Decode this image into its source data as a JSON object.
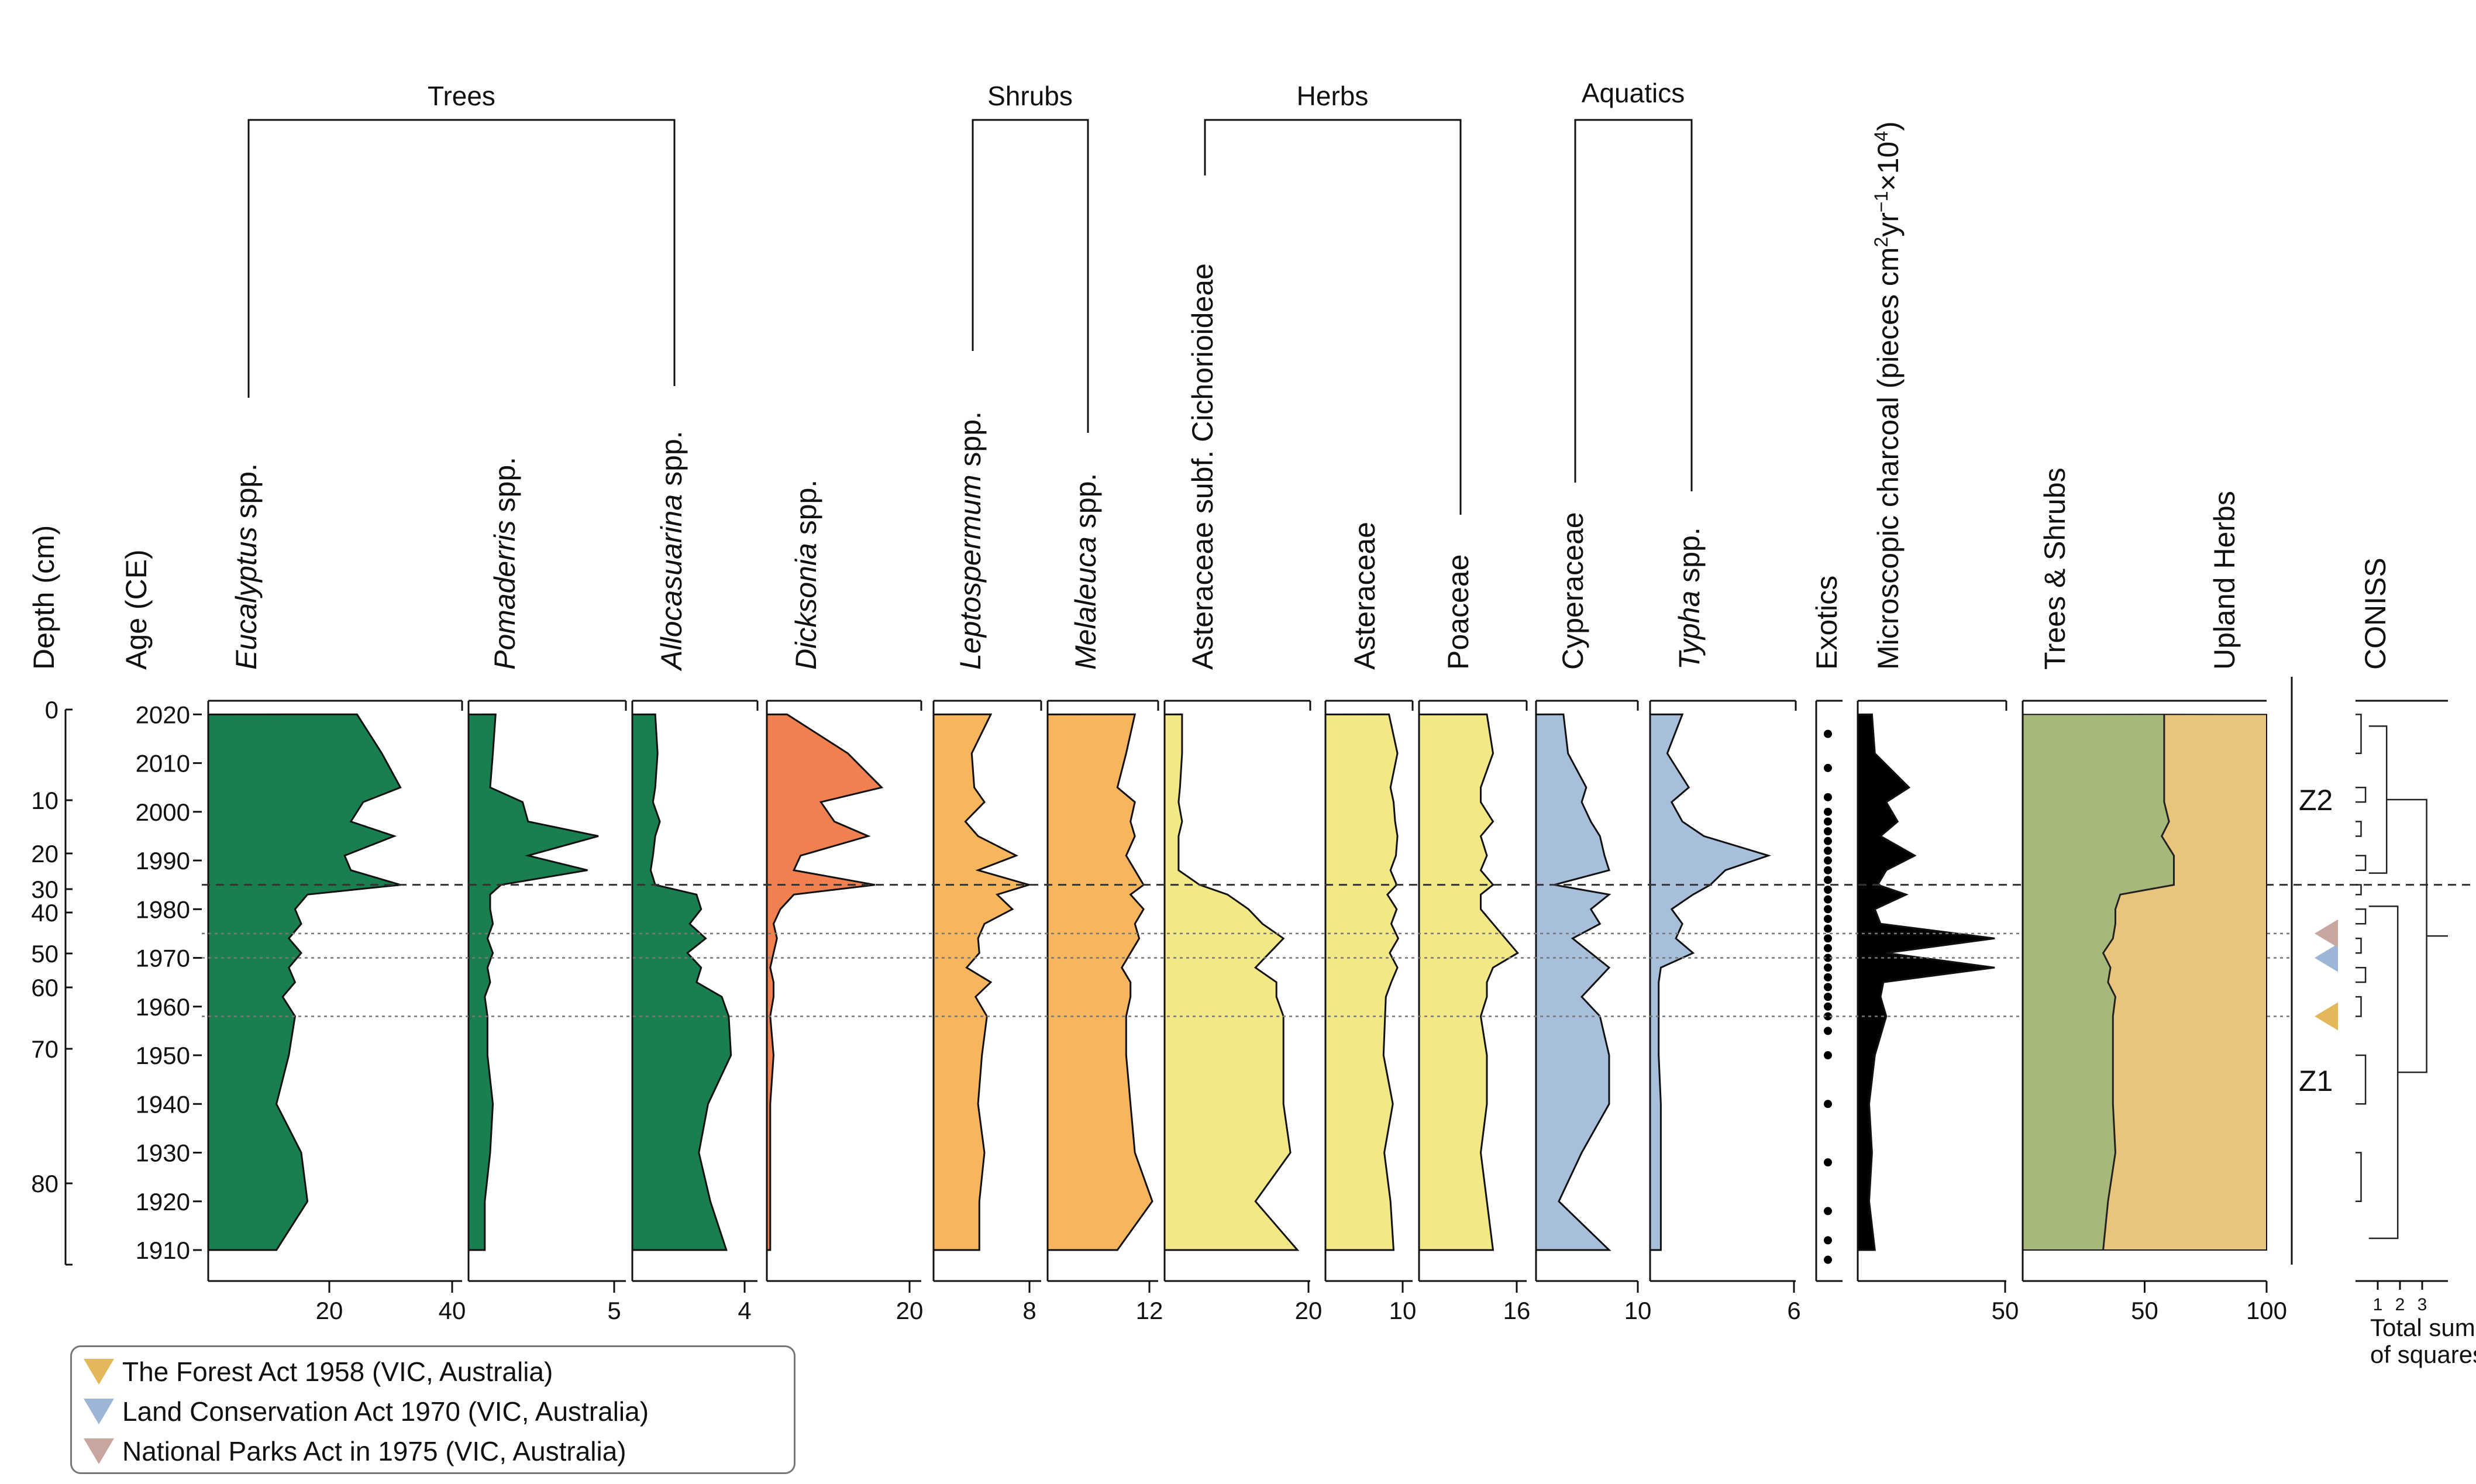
{
  "legend": {
    "items": [
      {
        "label": "The Forest Act 1958 (VIC, Australia)",
        "color": "#e3b85a",
        "age": 1958
      },
      {
        "label": "Land Conservation Act 1970  (VIC, Australia)",
        "color": "#9db5d6",
        "age": 1970
      },
      {
        "label": "National Parks Act in 1975 (VIC, Australia)",
        "color": "#c9a59f",
        "age": 1975
      }
    ]
  },
  "chart_data": {
    "type": "area",
    "y_axis": {
      "depth_label": "Depth (cm)",
      "age_label": "Age (CE)",
      "depth_ticks": [
        "0",
        "10",
        "20",
        "30",
        "40",
        "50",
        "60",
        "70",
        "80"
      ],
      "age_ticks": [
        "2020",
        "2010",
        "2000",
        "1990",
        "1980",
        "1970",
        "1960",
        "1950",
        "1940",
        "1930",
        "1920",
        "1910"
      ],
      "age_range": [
        2021,
        1907
      ]
    },
    "groups": [
      "Trees",
      "Shrubs",
      "Herbs",
      "Aquatics"
    ],
    "taxon_labels": {
      "eucalyptus": "Eucalyptus",
      "pomaderris": "Pomaderris",
      "allocasuarina": "Allocasuarina",
      "dicksonia": "Dicksonia",
      "leptospermum": "Leptospermum",
      "melaleuca": "Melaleuca",
      "typha": "Typha",
      "spp": "spp.",
      "cichorioideae": "Asteraceae subf. Cichorioideae",
      "asteraceae": "Asteraceae",
      "poaceae": "Poaceae",
      "cyperaceae": "Cyperaceae",
      "exotics": "Exotics",
      "charcoal_a": "Microscopic charcoal (pieces cm",
      "charcoal_sup2": "2",
      "charcoal_b": "yr",
      "charcoal_sup3": "−1",
      "charcoal_c": "×10",
      "charcoal_sup4": "4",
      "charcoal_d": ")",
      "trees_shrubs": "Trees & Shrubs",
      "upland_herbs": "Upland Herbs",
      "coniss": "CONISS"
    },
    "axis_ticks": {
      "eucalyptus": [
        "20",
        "40"
      ],
      "pomaderris": [
        "5"
      ],
      "allocasuarina": [
        "4"
      ],
      "dicksonia": [
        "20"
      ],
      "leptospermum": [
        "8"
      ],
      "melaleuca": [
        "12"
      ],
      "cichorioideae": [
        "20"
      ],
      "asteraceae": [
        "10"
      ],
      "poaceae": [
        "16"
      ],
      "cyperaceae": [
        "10"
      ],
      "typha": [
        "6"
      ],
      "charcoal": [
        "50"
      ],
      "summary": [
        "50",
        "100"
      ],
      "coniss": [
        "1",
        "2",
        "3"
      ]
    },
    "coniss_axis_label_1": "Total sum",
    "coniss_axis_label_2": "of squares",
    "zones": [
      "Z2",
      "Z1"
    ],
    "zone_boundary_age": 1985,
    "ages": [
      2020,
      2012,
      2005,
      2002,
      1998,
      1995,
      1991,
      1988,
      1985,
      1983,
      1980,
      1977,
      1974,
      1971,
      1968,
      1965,
      1962,
      1958,
      1950,
      1940,
      1930,
      1920,
      1910
    ],
    "series": [
      {
        "key": "eucalyptus",
        "max": 40,
        "color": "#1a7f4f",
        "values": [
          24,
          28,
          31,
          25,
          23,
          30,
          22,
          23,
          31,
          16,
          14,
          15,
          13,
          15,
          13,
          14,
          12,
          14,
          13,
          11,
          15,
          16,
          11
        ]
      },
      {
        "key": "pomaderris",
        "max": 5.6,
        "color": "#1a7f4f",
        "values": [
          1.0,
          0.9,
          0.8,
          2.0,
          2.2,
          4.8,
          2.2,
          4.4,
          1.2,
          0.8,
          0.8,
          0.9,
          0.7,
          0.9,
          0.7,
          0.8,
          0.6,
          0.7,
          0.7,
          0.9,
          0.8,
          0.6,
          0.6
        ]
      },
      {
        "key": "allocasuarina",
        "max": 5.2,
        "color": "#1a7f4f",
        "values": [
          1.0,
          1.1,
          1.0,
          0.9,
          1.2,
          1.0,
          0.9,
          0.8,
          1.0,
          2.8,
          3.0,
          2.5,
          3.2,
          2.4,
          3.0,
          2.8,
          3.9,
          4.2,
          4.3,
          3.3,
          2.9,
          3.4,
          4.1
        ]
      },
      {
        "key": "dicksonia",
        "max": 22,
        "color": "#f08050",
        "values": [
          3,
          12,
          17,
          8,
          10,
          15,
          5,
          4,
          16,
          4,
          2,
          1,
          1.5,
          1,
          0.5,
          1,
          1,
          0.5,
          1,
          0.5,
          0.5,
          0.5,
          0.5
        ]
      },
      {
        "key": "leptospermum",
        "max": 8,
        "color": "#f7b55e",
        "values": [
          4.5,
          3.0,
          3.2,
          4.0,
          2.5,
          3.5,
          6.5,
          3.5,
          7.5,
          5.0,
          6.2,
          4.0,
          3.5,
          3.6,
          2.6,
          4.5,
          3.3,
          4.2,
          3.8,
          3.5,
          4.0,
          3.6,
          3.6
        ]
      },
      {
        "key": "melaleuca",
        "max": 12,
        "color": "#f7b55e",
        "values": [
          10,
          9,
          8,
          10,
          9.5,
          10,
          9,
          10,
          11,
          9.5,
          11,
          10,
          10.5,
          9.5,
          8.5,
          9.5,
          9.5,
          9,
          9,
          9.5,
          10,
          12,
          8
        ]
      },
      {
        "key": "cichorioideae",
        "max": 20,
        "color": "#f2e886",
        "values": [
          2.5,
          2.5,
          2.2,
          2.0,
          2.5,
          2.0,
          2.0,
          2.0,
          5,
          9,
          12,
          14,
          17,
          15,
          13,
          16,
          16,
          17,
          17,
          17,
          18,
          13,
          19
        ]
      },
      {
        "key": "asteraceae",
        "max": 10.5,
        "color": "#f2e886",
        "values": [
          8.2,
          9.3,
          8.4,
          8.8,
          9.0,
          9.3,
          9.1,
          8.4,
          9.2,
          8.0,
          9.2,
          8.5,
          9.4,
          8.3,
          9.3,
          8.5,
          7.8,
          7.7,
          7.5,
          8.7,
          7.6,
          8.4,
          8.8
        ]
      },
      {
        "key": "poaceae",
        "max": 16.5,
        "color": "#f2e886",
        "values": [
          11,
          12,
          10,
          10,
          12,
          10,
          11,
          10,
          12,
          10,
          10,
          12,
          14,
          16,
          12,
          11,
          11,
          10,
          11,
          11,
          10,
          11,
          12
        ]
      },
      {
        "key": "cyperaceae",
        "max": 10.5,
        "color": "#a8bfdc",
        "values": [
          3,
          3.5,
          5.5,
          5,
          6,
          7,
          7.5,
          8,
          2,
          8,
          6,
          7,
          4,
          6,
          8,
          6.5,
          5,
          7,
          8,
          8,
          5,
          2.5,
          8
        ]
      },
      {
        "key": "typha",
        "max": 6.5,
        "color": "#a8bfdc",
        "values": [
          1.5,
          0.8,
          1.8,
          1.0,
          1.5,
          2.5,
          5.5,
          3.5,
          2.8,
          2.0,
          1.0,
          1.5,
          1.2,
          2.0,
          0.5,
          0.4,
          0.4,
          0.4,
          0.4,
          0.5,
          0.5,
          0.5,
          0.5
        ]
      },
      {
        "key": "charcoal",
        "max": 50,
        "color": "#000000",
        "values": [
          5,
          6,
          18,
          10,
          14,
          8,
          20,
          10,
          7,
          17,
          6,
          8,
          48,
          10,
          48,
          9,
          8,
          10,
          6,
          4,
          5,
          4,
          6
        ]
      }
    ],
    "exotics_ages": [
      2016,
      2009,
      2003,
      2000,
      1998,
      1996,
      1994,
      1992,
      1990,
      1988,
      1986,
      1984,
      1982,
      1980,
      1978,
      1976,
      1974,
      1972,
      1970,
      1968,
      1966,
      1964,
      1962,
      1960,
      1958,
      1955,
      1950,
      1940,
      1928,
      1918,
      1912,
      1908
    ],
    "summary": {
      "labels": [
        "Trees & Shrubs",
        "Upland Herbs"
      ],
      "colors": [
        "#a6b87a",
        "#e8c47c"
      ],
      "trees_shrubs": [
        58,
        58,
        58,
        58,
        60,
        57,
        62,
        62,
        62,
        40,
        38,
        38,
        37,
        33,
        36,
        35,
        38,
        37,
        37,
        37,
        38,
        35,
        33
      ]
    },
    "event_ages": [
      1975,
      1970,
      1958
    ]
  }
}
